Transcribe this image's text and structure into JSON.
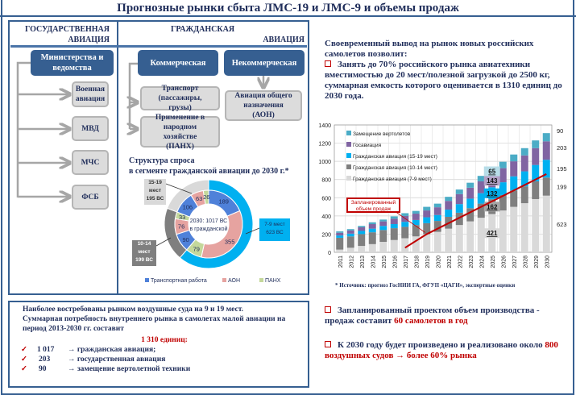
{
  "title": "Прогнозные рынки сбыта ЛМС-19 и ЛМС-9 и объемы продаж",
  "structure": {
    "gov_header_1": "ГОСУДАРСТВЕННАЯ",
    "gov_header_2": "АВИАЦИЯ",
    "civ_header_1": "ГРАЖДАНСКАЯ",
    "civ_header_2": "АВИАЦИЯ",
    "ministries": "Министерства и ведомства",
    "gov_items": [
      "Военная авиация",
      "МВД",
      "МЧС",
      "ФСБ"
    ],
    "commercial": "Коммерческая",
    "noncommercial": "Некоммерческая",
    "transport": "Транспорт (пассажиры, грузы)",
    "panh": "Применение в народном хозяйстве (ПАНХ)",
    "aon": "Авиация общего назначения (АОН)"
  },
  "donut": {
    "title_1": "Структура спроса",
    "title_2": "в сегменте гражданской авиации до 2030 г.*",
    "center_1": "2030: 1017 ВС",
    "center_2": "в гражданской",
    "outer": [
      {
        "label_1": "7-9 мест",
        "label_2": "623 ВС",
        "value": 623,
        "color": "#00b0f0"
      },
      {
        "label_1": "10-14",
        "label_2": "мест",
        "label_3": "199 ВС",
        "value": 199,
        "color": "#7f7f7f"
      },
      {
        "label_1": "15-19",
        "label_2": "мест",
        "label_3": "195 ВС",
        "value": 195,
        "color": "#d9d9d9"
      }
    ],
    "inner": [
      {
        "value": 189,
        "type": 0
      },
      {
        "value": 355,
        "type": 1
      },
      {
        "value": 79,
        "type": 2
      },
      {
        "value": 90,
        "type": 0
      },
      {
        "value": 76,
        "type": 1
      },
      {
        "value": 33,
        "type": 2
      },
      {
        "value": 106,
        "type": 0
      },
      {
        "value": 63,
        "type": 1
      },
      {
        "value": 26,
        "type": 2
      }
    ],
    "legend": [
      {
        "label": "Транспортная работа",
        "color": "#4f81d9"
      },
      {
        "label": "АОН",
        "color": "#e6a3a0"
      },
      {
        "label": "ПАНХ",
        "color": "#c4d89b"
      }
    ]
  },
  "summary": {
    "line1": "Наиболее востребованы рынком воздушные суда на 9 и 19 мест.",
    "line2": "Суммарная потребность внутреннего рынка в самолетах малой авиации на период 2013-2030 гг. составит",
    "total": "1 310 единиц:",
    "items": [
      {
        "num": "1 017",
        "text": "→ гражданская авиация;"
      },
      {
        "num": "203",
        "text": "→ государственная авиация"
      },
      {
        "num": "90",
        "text": "→ замещение вертолетной техники"
      }
    ]
  },
  "right": {
    "intro": "Своевременный вывод на рынок новых российских самолетов позволит:",
    "bullet1": "Занять до 70% российского рынка авиатехники вместимостью до 20 мест/полезной загрузкой до 2500 кг, суммарная емкость которого оценивается в 1310 единиц до 2030 года.",
    "bullet2_a": "Запланированный проектом объем производства - продаж составит ",
    "bullet2_b": "60 самолетов в год",
    "bullet3_a": "К 2030 году будет произведено и реализовано около ",
    "bullet3_b": "800 воздушных судов → более 60% рынка",
    "source": "* Источник: прогноз ГосНИИ ГА, ФГУП «ЦАГИ», экспертные оценки"
  },
  "chart_data": {
    "type": "bar",
    "stacked": true,
    "categories": [
      "2011",
      "2012",
      "2013",
      "2014",
      "2015",
      "2016",
      "2017",
      "2018",
      "2019",
      "2020",
      "2021",
      "2022",
      "2023",
      "2024",
      "2025",
      "2026",
      "2027",
      "2028",
      "2029",
      "2030"
    ],
    "ylim": [
      0,
      1400
    ],
    "yticks": [
      0,
      200,
      400,
      600,
      800,
      1000,
      1200,
      1400
    ],
    "grid": true,
    "legend_position": "top-left",
    "series": [
      {
        "name": "Гражданская авиация (7-9 мест)",
        "color": "#d9d9d9",
        "values": [
          30,
          50,
          70,
          90,
          115,
          135,
          155,
          175,
          200,
          225,
          260,
          300,
          340,
          380,
          421,
          460,
          500,
          540,
          585,
          623
        ]
      },
      {
        "name": "Гражданская авиация (10-14 мест)",
        "color": "#7f7f7f",
        "values": [
          130,
          125,
          130,
          130,
          130,
          130,
          125,
          125,
          120,
          120,
          130,
          135,
          145,
          155,
          162,
          170,
          180,
          185,
          195,
          199
        ]
      },
      {
        "name": "Гражданская авиация (15-19 мест)",
        "color": "#00b0f0",
        "values": [
          25,
          30,
          35,
          40,
          45,
          45,
          55,
          55,
          65,
          65,
          80,
          95,
          105,
          115,
          132,
          140,
          155,
          165,
          180,
          195
        ]
      },
      {
        "name": "Госавиация",
        "color": "#8064a2",
        "values": [
          30,
          35,
          40,
          50,
          50,
          60,
          65,
          70,
          75,
          85,
          95,
          110,
          120,
          130,
          143,
          155,
          165,
          175,
          185,
          203
        ]
      },
      {
        "name": "Замещение вертолетов",
        "color": "#4bacc6",
        "values": [
          15,
          15,
          15,
          20,
          20,
          25,
          30,
          30,
          40,
          40,
          45,
          50,
          55,
          60,
          65,
          70,
          75,
          80,
          85,
          90
        ]
      }
    ],
    "bar_labels_2025": [
      "421",
      "162",
      "132",
      "143",
      "65"
    ],
    "right_labels_2030": [
      "623",
      "199",
      "195",
      "203",
      "90"
    ],
    "planned_line": {
      "label": "Запланированный объем продаж",
      "color": "#c00000",
      "points": [
        [
          "2017",
          50
        ],
        [
          "2019",
          200
        ],
        [
          "2030",
          860
        ]
      ]
    }
  }
}
